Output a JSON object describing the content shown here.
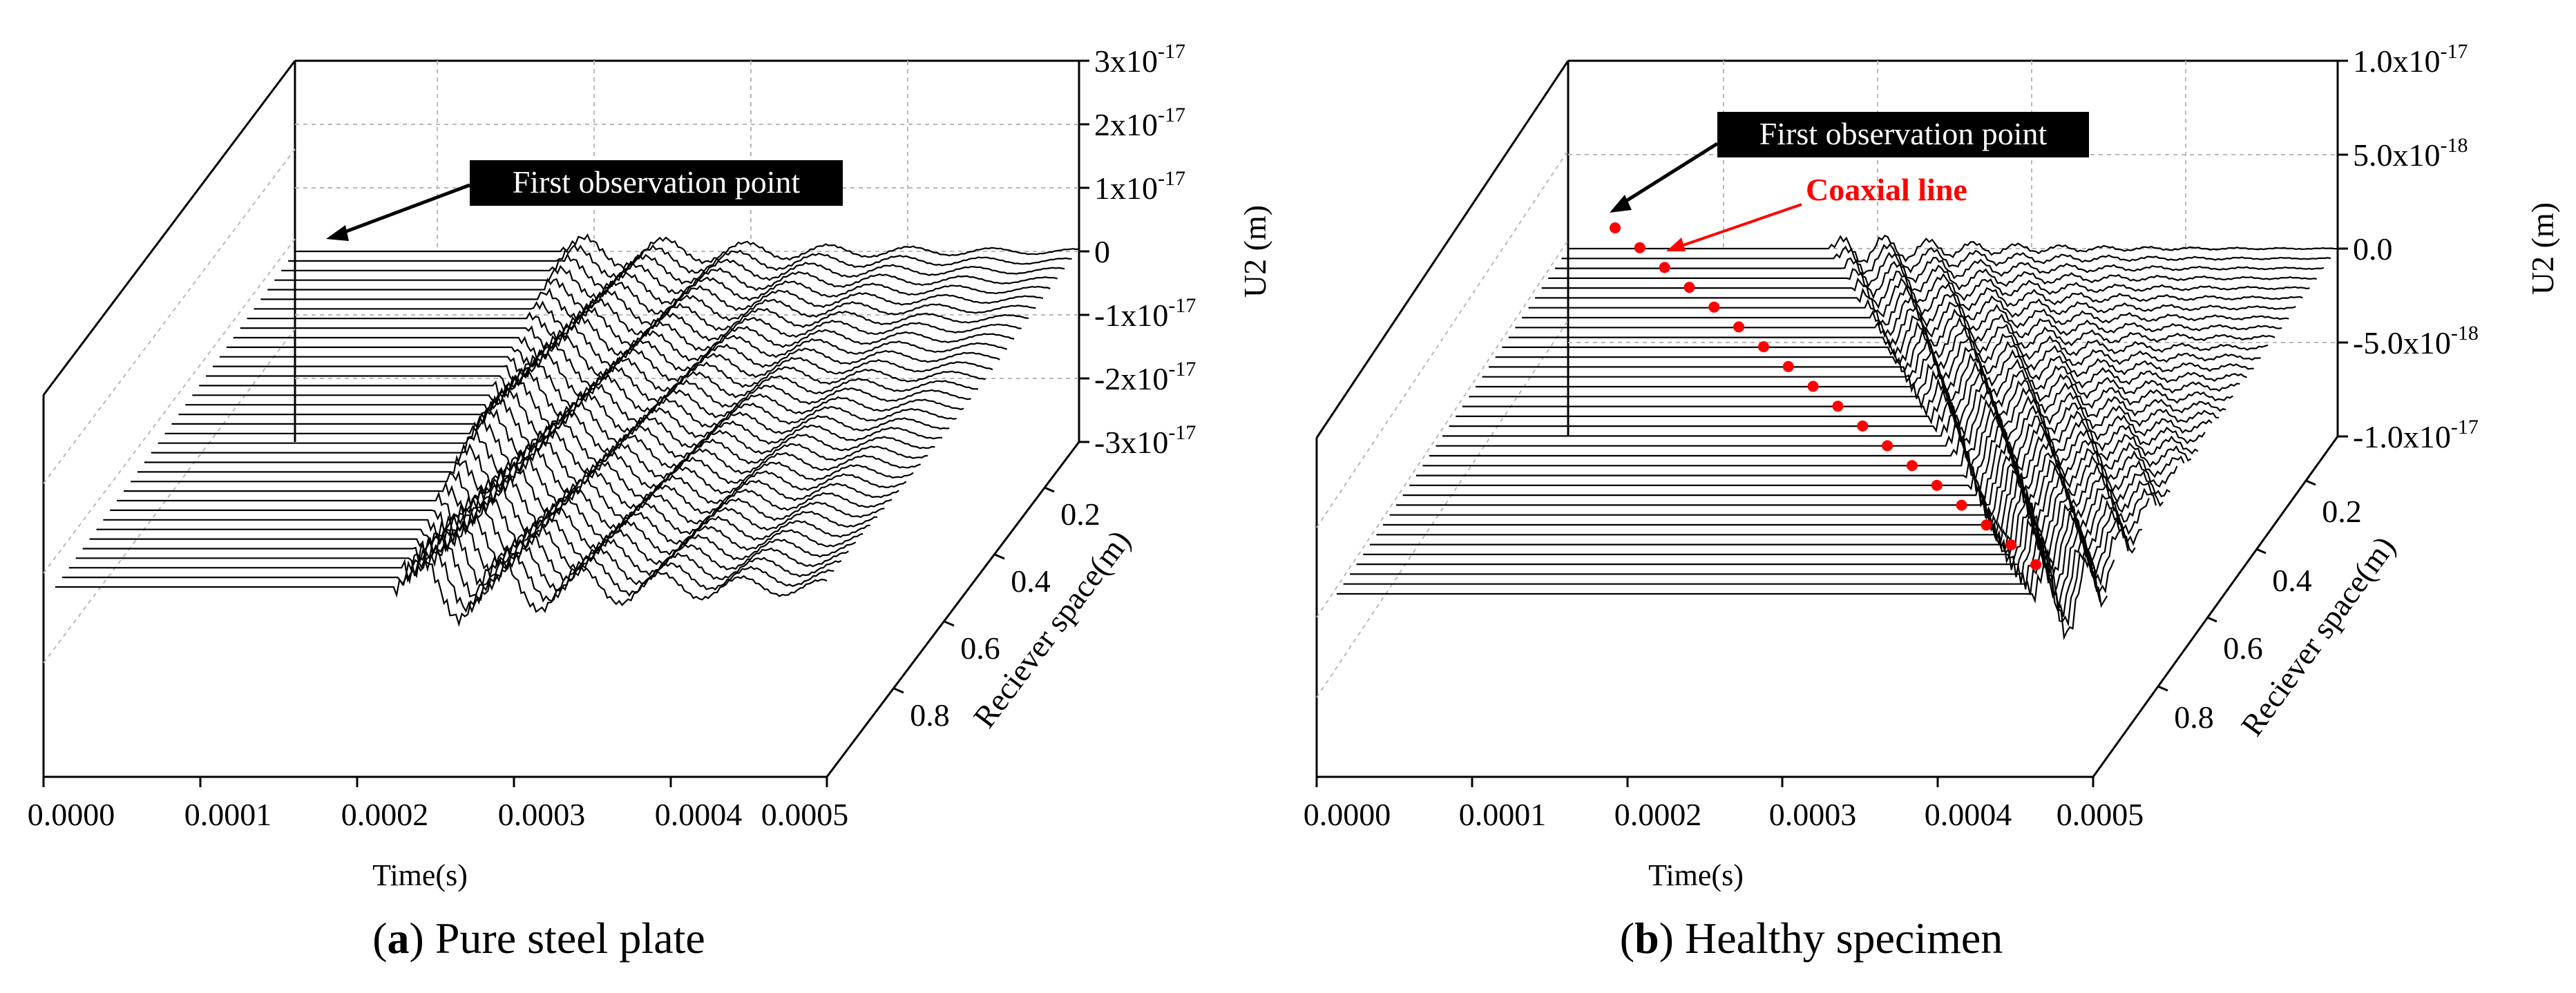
{
  "chart_data": [
    {
      "type": "waterfall",
      "panel_letter": "a",
      "caption_text": " Pure steel plate",
      "x_axis": {
        "label": "Time(s)",
        "ticks": [
          "0.0000",
          "0.0001",
          "0.0002",
          "0.0003",
          "0.0004",
          "0.0005"
        ],
        "range": [
          0,
          0.0005
        ]
      },
      "depth_axis": {
        "label": "Reciever space(m)",
        "ticks": [
          "0.2",
          "0.4",
          "0.6",
          "0.8"
        ],
        "range": [
          0,
          1
        ]
      },
      "z_axis": {
        "label": "U2 (m)",
        "ticks": [
          {
            "m": "3x10",
            "e": "-17"
          },
          {
            "m": "2x10",
            "e": "-17"
          },
          {
            "m": "1x10",
            "e": "-17"
          },
          {
            "m": "0",
            "e": ""
          },
          {
            "m": "-1x10",
            "e": "-17"
          },
          {
            "m": "-2x10",
            "e": "-17"
          },
          {
            "m": "-3x10",
            "e": "-17"
          }
        ],
        "range": [
          -3e-17,
          3e-17
        ]
      },
      "annotation": "First observation point",
      "receiver_count": 36,
      "first_arrival_time_start": 0.00017,
      "first_arrival_time_end": 0.00022,
      "amplitude_peak": 6e-18
    },
    {
      "type": "waterfall",
      "panel_letter": "b",
      "caption_text": " Healthy specimen",
      "x_axis": {
        "label": "Time(s)",
        "ticks": [
          "0.0000",
          "0.0001",
          "0.0002",
          "0.0003",
          "0.0004",
          "0.0005"
        ],
        "range": [
          0,
          0.0005
        ]
      },
      "depth_axis": {
        "label": "Reciever space(m)",
        "ticks": [
          "0.2",
          "0.4",
          "0.6",
          "0.8"
        ],
        "range": [
          0,
          1
        ]
      },
      "z_axis": {
        "label": "U2 (m)",
        "ticks": [
          {
            "m": "1.0x10",
            "e": "-17"
          },
          {
            "m": "5.0x10",
            "e": "-18"
          },
          {
            "m": "0.0",
            "e": ""
          },
          {
            "m": "-5.0x10",
            "e": "-18"
          },
          {
            "m": "-1.0x10",
            "e": "-17"
          }
        ],
        "range": [
          -1e-17,
          1e-17
        ]
      },
      "annotation": "First observation point",
      "coaxial_label": "Coaxial  line",
      "coaxial_color": "#ff0000",
      "receiver_count": 36,
      "coaxial_time_start": 0.00017,
      "coaxial_time_end": 0.00046,
      "amplitude_peak": 2.5e-18
    }
  ]
}
